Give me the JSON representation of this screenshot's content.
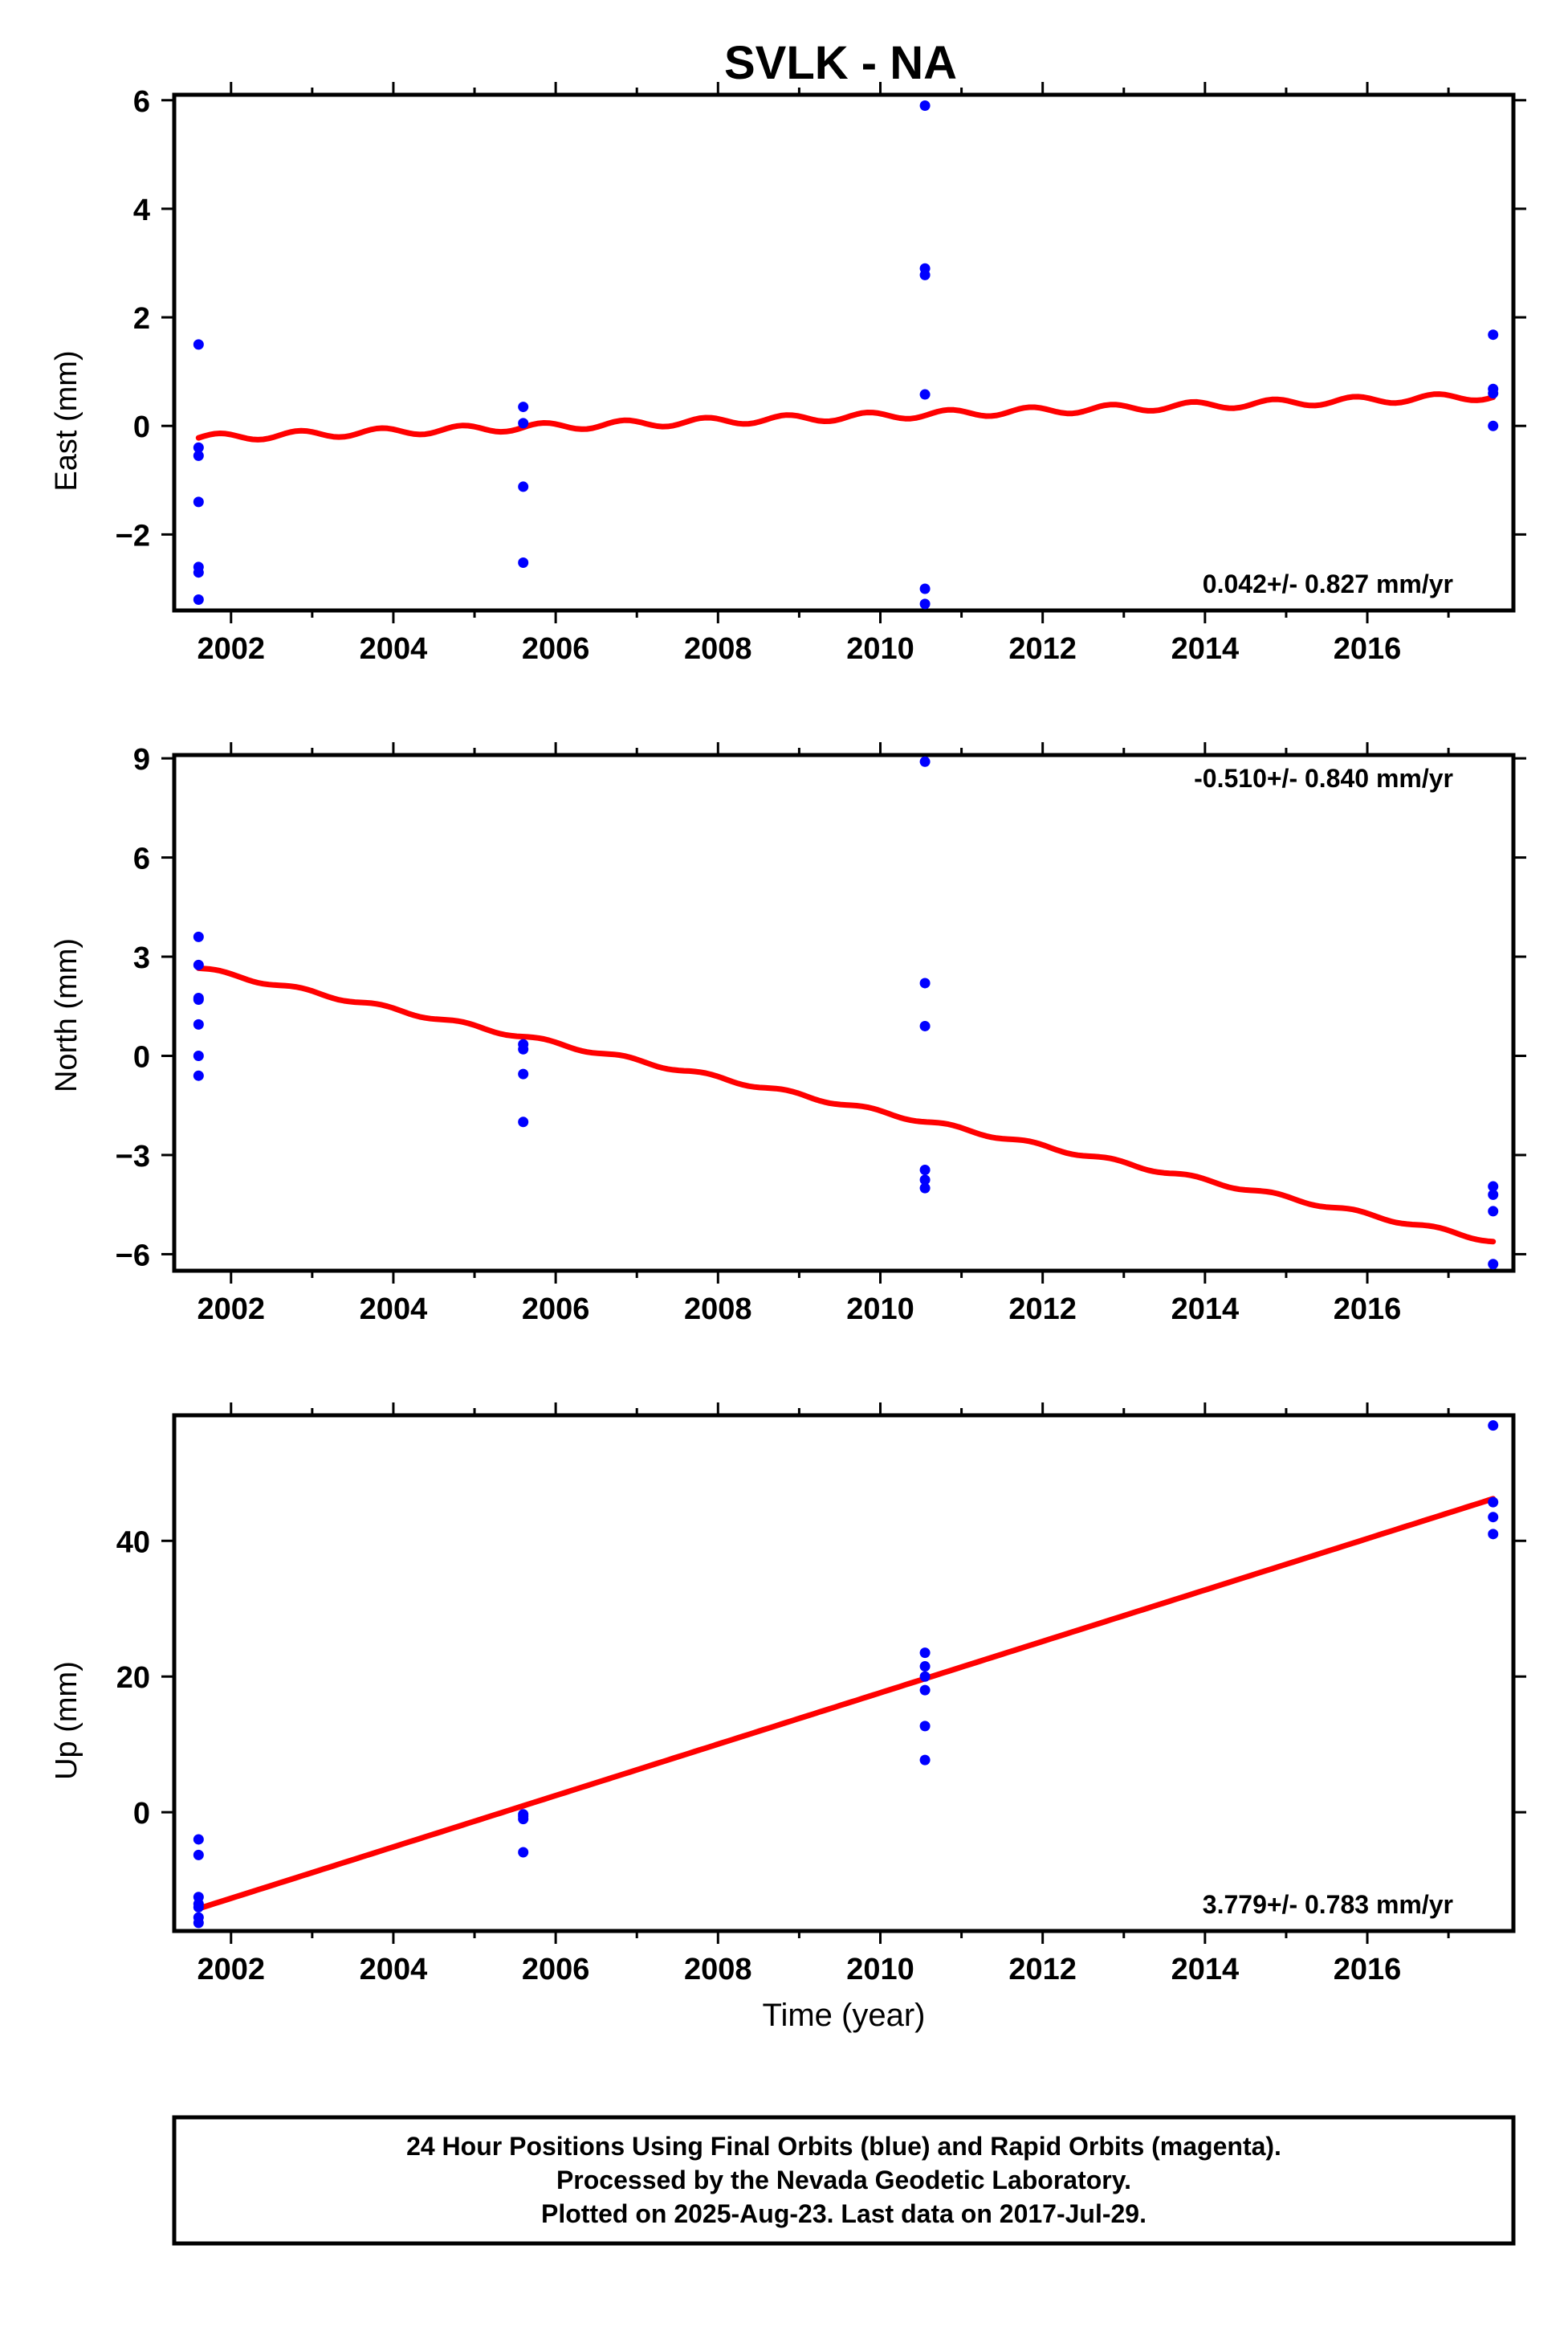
{
  "title": "SVLK - NA",
  "xlabel": "Time (year)",
  "footer": {
    "line1": "24 Hour Positions Using Final Orbits (blue) and Rapid Orbits (magenta).",
    "line2": "Processed by the Nevada Geodetic Laboratory.",
    "line3": "Plotted on 2025-Aug-23. Last data on 2017-Jul-29."
  },
  "colors": {
    "points": "#0000ff",
    "fit": "#ff0000",
    "frame": "#000000"
  },
  "chart_data": [
    {
      "type": "scatter",
      "ylabel": "East (mm)",
      "rate_label": "0.042+/- 0.827 mm/yr",
      "rate_position": "bottom-right",
      "xlim": [
        2001.3,
        2017.8
      ],
      "ylim": [
        -3.4,
        6.1
      ],
      "yticks": [
        -2,
        0,
        2,
        4,
        6
      ],
      "xticks": [
        2002,
        2004,
        2006,
        2008,
        2010,
        2012,
        2014,
        2016
      ],
      "series": [
        {
          "kind": "points",
          "x": [
            2001.6,
            2001.6,
            2001.6,
            2001.6,
            2001.6,
            2001.6,
            2001.6,
            2005.6,
            2005.6,
            2005.6,
            2005.6,
            2010.55,
            2010.55,
            2010.55,
            2010.55,
            2010.55,
            2010.55,
            2017.55,
            2017.55,
            2017.55,
            2017.55
          ],
          "y": [
            1.5,
            -0.4,
            -0.55,
            -1.4,
            -2.6,
            -2.7,
            -3.2,
            0.35,
            0.05,
            -1.12,
            -2.52,
            5.9,
            2.9,
            2.78,
            0.58,
            -3.0,
            -3.28,
            1.68,
            0.68,
            0.6,
            0.0
          ]
        },
        {
          "kind": "fit",
          "x0": 2001.6,
          "y0": -0.22,
          "x1": 2017.55,
          "y1": 0.55,
          "amplitude": 0.07
        }
      ]
    },
    {
      "type": "scatter",
      "ylabel": "North (mm)",
      "rate_label": "-0.510+/- 0.840 mm/yr",
      "rate_position": "top-right",
      "xlim": [
        2001.3,
        2017.8
      ],
      "ylim": [
        -6.5,
        9.1
      ],
      "yticks": [
        -6,
        -3,
        0,
        3,
        6,
        9
      ],
      "xticks": [
        2002,
        2004,
        2006,
        2008,
        2010,
        2012,
        2014,
        2016
      ],
      "series": [
        {
          "kind": "points",
          "x": [
            2001.6,
            2001.6,
            2001.6,
            2001.6,
            2001.6,
            2001.6,
            2001.6,
            2005.6,
            2005.6,
            2005.6,
            2005.6,
            2010.55,
            2010.55,
            2010.55,
            2010.55,
            2010.55,
            2010.55,
            2017.55,
            2017.55,
            2017.55,
            2017.55
          ],
          "y": [
            3.6,
            2.75,
            1.75,
            0.95,
            0.0,
            -0.6,
            1.7,
            0.35,
            0.2,
            -0.55,
            -2.0,
            8.9,
            2.2,
            0.9,
            -3.45,
            -3.75,
            -4.0,
            -3.95,
            -4.2,
            -4.7,
            -6.3
          ]
        },
        {
          "kind": "fit",
          "x0": 2001.6,
          "y0": 2.65,
          "x1": 2017.55,
          "y1": -5.6,
          "amplitude": 0.06
        }
      ]
    },
    {
      "type": "scatter",
      "ylabel": "Up (mm)",
      "rate_label": "3.779+/- 0.783 mm/yr",
      "rate_position": "bottom-right",
      "xlim": [
        2001.3,
        2017.8
      ],
      "ylim": [
        -17.5,
        58.5
      ],
      "yticks": [
        0,
        20,
        40
      ],
      "xticks": [
        2002,
        2004,
        2006,
        2008,
        2010,
        2012,
        2014,
        2016
      ],
      "series": [
        {
          "kind": "points",
          "x": [
            2001.6,
            2001.6,
            2001.6,
            2001.6,
            2001.6,
            2001.6,
            2001.6,
            2005.6,
            2005.6,
            2005.6,
            2005.6,
            2010.55,
            2010.55,
            2010.55,
            2010.55,
            2010.55,
            2010.55,
            2017.55,
            2017.55,
            2017.55,
            2017.55
          ],
          "y": [
            -4.0,
            -6.3,
            -12.5,
            -13.5,
            -15.5,
            -16.3,
            -14.0,
            -0.3,
            -1.0,
            -0.6,
            -5.9,
            23.5,
            21.5,
            18.0,
            12.7,
            7.7,
            20.0,
            57.0,
            45.7,
            43.5,
            41.0
          ]
        },
        {
          "kind": "fit",
          "x0": 2001.6,
          "y0": -14.2,
          "x1": 2017.55,
          "y1": 46.2,
          "amplitude": 0.0
        }
      ]
    }
  ]
}
